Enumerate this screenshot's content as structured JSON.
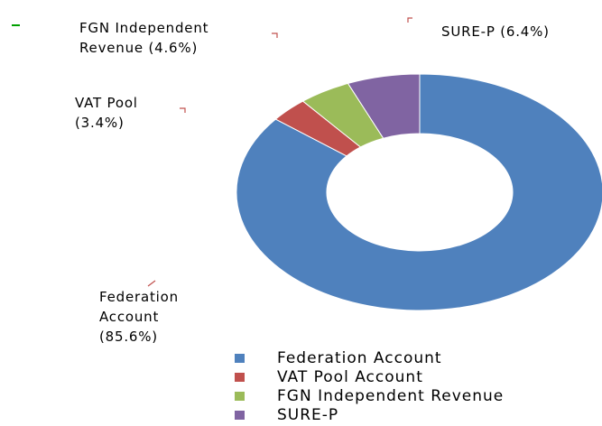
{
  "chart_data": {
    "type": "donut",
    "categories": [
      "Federation Account",
      "VAT Pool Account",
      "FGN Independent Revenue",
      "SURE-P"
    ],
    "values": [
      85.6,
      3.4,
      4.6,
      6.4
    ],
    "value_labels": [
      "Federation Account (85.6%)",
      "VAT Pool (3.4%)",
      "FGN Independent Revenue (4.6%)",
      "SURE-P (6.4%)"
    ],
    "colors": [
      "#4f81bd",
      "#c0504d",
      "#9bbb59",
      "#8064a2"
    ]
  }
}
